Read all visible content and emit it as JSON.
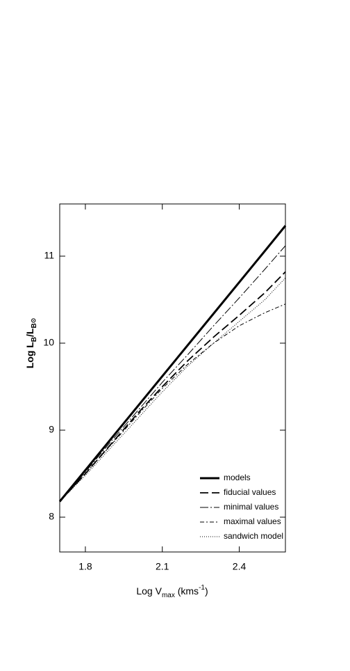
{
  "chart_data": {
    "type": "line",
    "x_label": [
      "Log V",
      "max",
      " (kms",
      "-1",
      ")"
    ],
    "y_label": [
      "Log L",
      "B",
      "/L",
      "B",
      "⊙"
    ],
    "x": [
      1.7,
      1.8,
      1.9,
      2.0,
      2.1,
      2.2,
      2.3,
      2.4,
      2.5,
      2.58
    ],
    "series": [
      {
        "name": "models",
        "color": "#000",
        "width": 3,
        "dash": "none",
        "values": [
          8.18,
          8.54,
          8.9,
          9.26,
          9.62,
          9.98,
          10.34,
          10.7,
          11.06,
          11.35
        ]
      },
      {
        "name": "fiducial values",
        "color": "#000",
        "width": 1.8,
        "dash": "12,5",
        "values": [
          8.18,
          8.5,
          8.84,
          9.18,
          9.5,
          9.8,
          10.07,
          10.32,
          10.58,
          10.82
        ]
      },
      {
        "name": "minimal values",
        "color": "#000",
        "width": 1,
        "dash": "12,3,2,3",
        "values": [
          8.18,
          8.52,
          8.87,
          9.21,
          9.55,
          9.87,
          10.2,
          10.52,
          10.85,
          11.12
        ]
      },
      {
        "name": "maximal values",
        "color": "#000",
        "width": 1,
        "dash": "6,3,2,3",
        "values": [
          8.18,
          8.5,
          8.83,
          9.16,
          9.48,
          9.76,
          10.0,
          10.2,
          10.35,
          10.45
        ]
      },
      {
        "name": "sandwich model",
        "color": "#000",
        "width": 1,
        "dash": "1,2",
        "values": [
          8.18,
          8.48,
          8.8,
          9.12,
          9.44,
          9.74,
          10.0,
          10.25,
          10.5,
          10.75
        ]
      }
    ],
    "xlim": [
      1.7,
      2.58
    ],
    "ylim": [
      7.6,
      11.6
    ],
    "xticks": [
      1.8,
      2.1,
      2.4
    ],
    "yticks": [
      8,
      9,
      10,
      11
    ],
    "legend": "lower right"
  }
}
